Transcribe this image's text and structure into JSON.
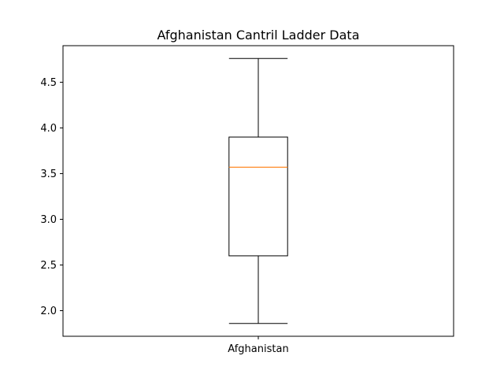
{
  "chart_data": {
    "type": "box",
    "title": "Afghanistan Cantril Ladder Data",
    "xlabel": "",
    "ylabel": "",
    "categories": [
      "Afghanistan"
    ],
    "boxes": [
      {
        "name": "Afghanistan",
        "whisker_low": 1.86,
        "q1": 2.6,
        "median": 3.57,
        "q3": 3.9,
        "whisker_high": 4.76
      }
    ],
    "ylim": [
      1.72,
      4.9
    ],
    "yticks": [
      2.0,
      2.5,
      3.0,
      3.5,
      4.0,
      4.5
    ],
    "ytick_labels": [
      "2.0",
      "2.5",
      "3.0",
      "3.5",
      "4.0",
      "4.5"
    ],
    "grid": false,
    "colors": {
      "box": "#000000",
      "median": "#ff7f0e"
    }
  }
}
